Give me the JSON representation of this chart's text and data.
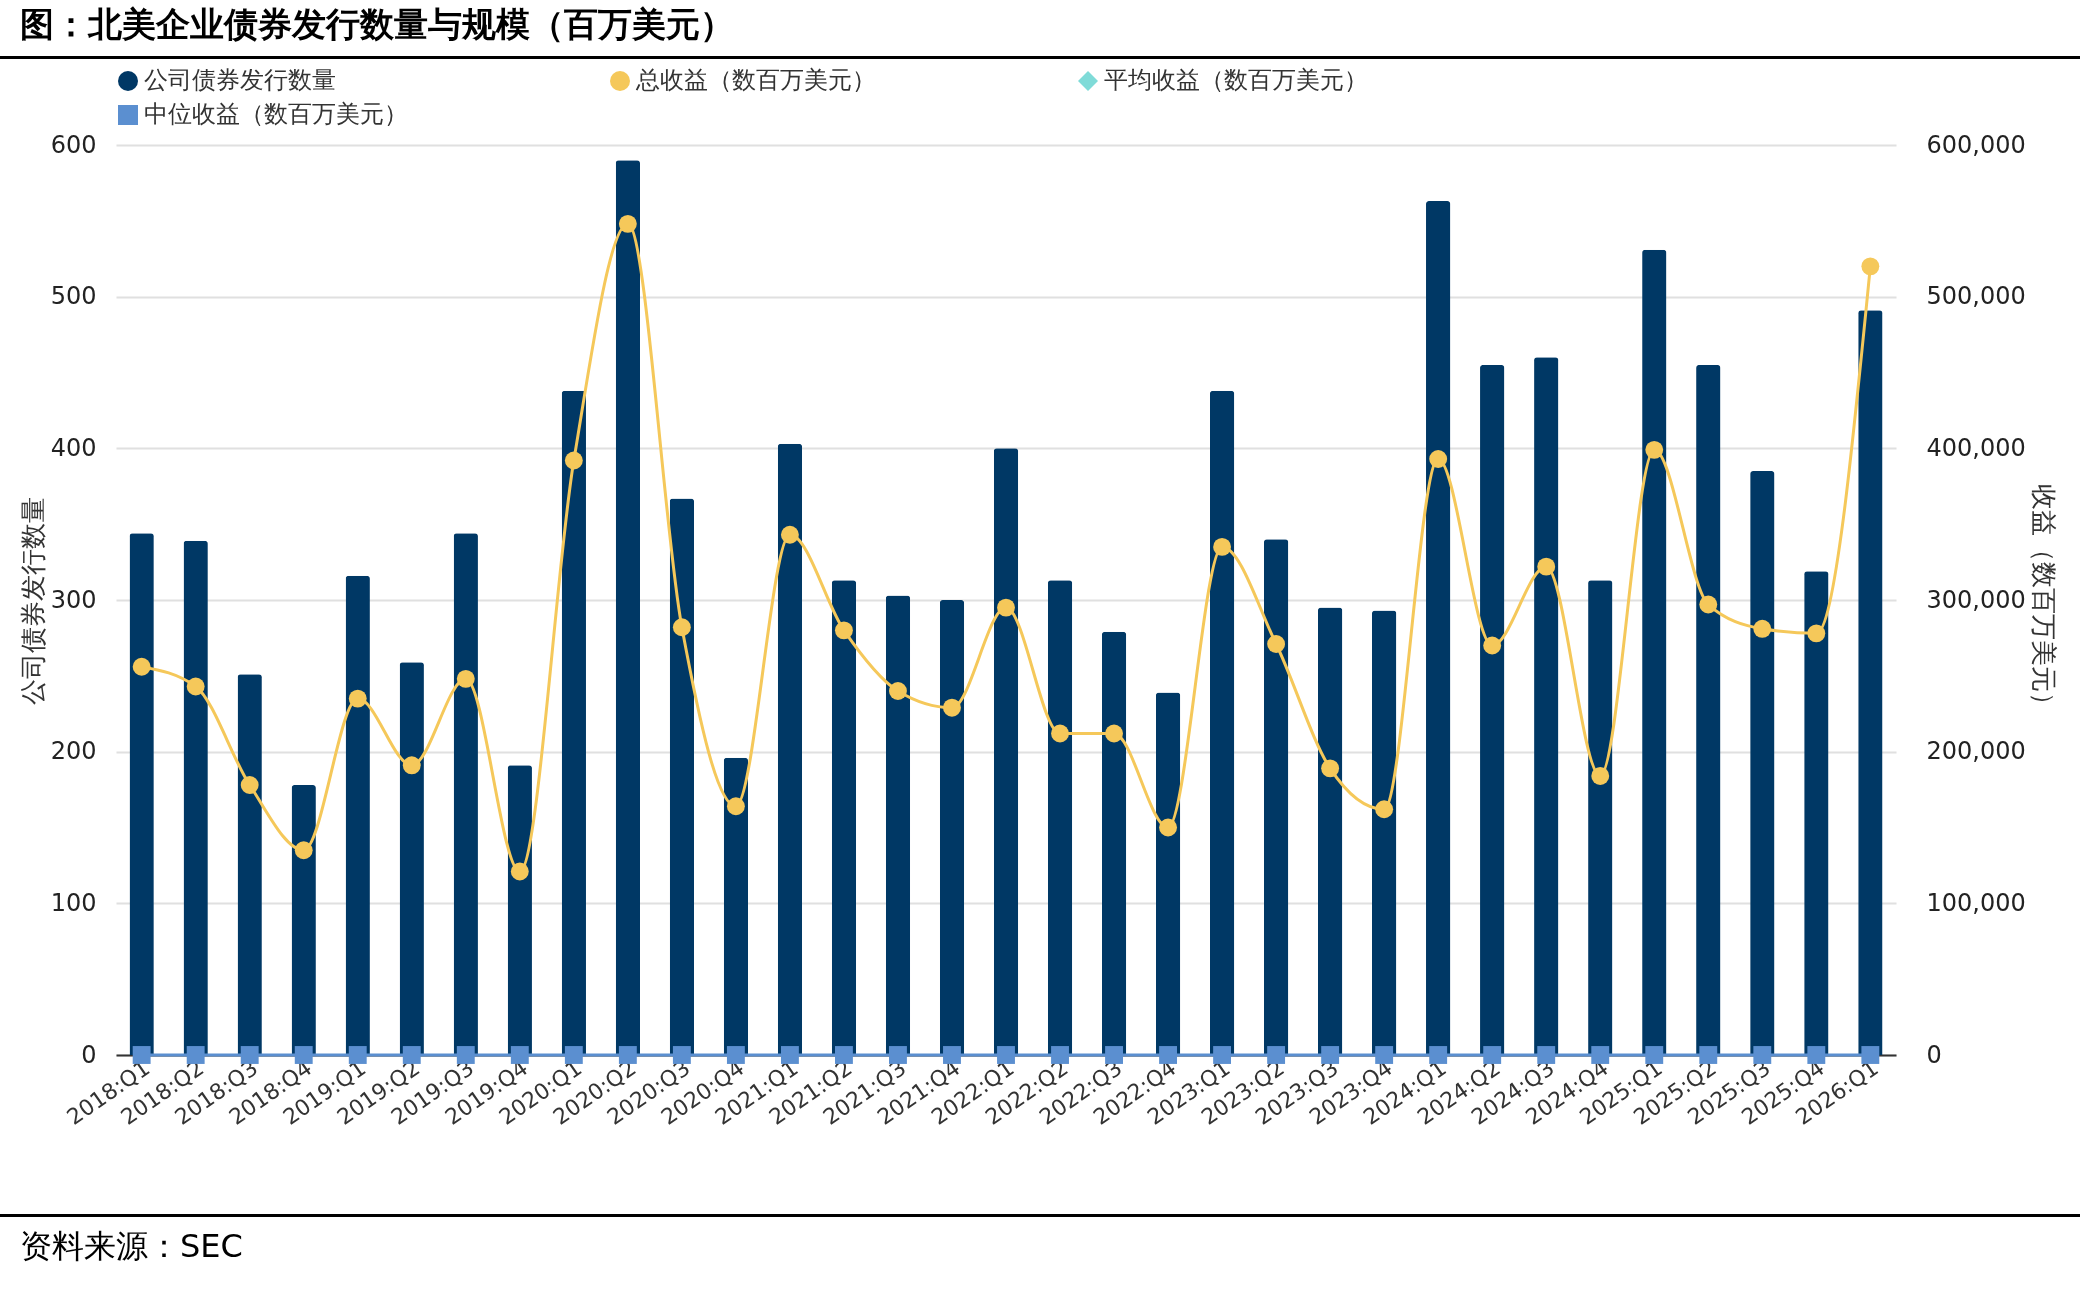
{
  "chart_data": {
    "type": "bar",
    "title": "图：北美企业债券发行数量与规模（百万美元）",
    "categories": [
      "2018:Q1",
      "2018:Q2",
      "2018:Q3",
      "2018:Q4",
      "2019:Q1",
      "2019:Q2",
      "2019:Q3",
      "2019:Q4",
      "2020:Q1",
      "2020:Q2",
      "2020:Q3",
      "2020:Q4",
      "2021:Q1",
      "2021:Q2",
      "2021:Q3",
      "2021:Q4",
      "2022:Q1",
      "2022:Q2",
      "2022:Q3",
      "2022:Q4",
      "2023:Q1",
      "2023:Q2",
      "2023:Q3",
      "2023:Q4",
      "2024:Q1",
      "2024:Q2",
      "2024:Q3",
      "2024:Q4",
      "2025:Q1",
      "2025:Q2",
      "2025:Q3",
      "2025:Q4",
      "2026:Q1"
    ],
    "series": [
      {
        "name": "公司债券发行数量",
        "color": "#003865",
        "values": [
          344,
          339,
          251,
          178,
          316,
          259,
          344,
          191,
          438,
          590,
          367,
          196,
          403,
          313,
          303,
          300,
          400,
          313,
          279,
          239,
          438,
          340,
          295,
          293,
          563,
          455,
          460,
          313,
          531,
          455,
          385,
          319,
          491
        ]
      },
      {
        "name": "总收益（数百万美元）",
        "type": "line",
        "axis": "y2",
        "marker": "circle",
        "color": "#f5c85a",
        "values": [
          256000,
          243000,
          178000,
          135000,
          235000,
          191000,
          248000,
          121000,
          392000,
          548000,
          282000,
          164000,
          343000,
          280000,
          240000,
          229000,
          295000,
          212000,
          212000,
          150000,
          335000,
          271000,
          189000,
          162000,
          393000,
          270000,
          322000,
          184000,
          399000,
          297000,
          281000,
          278000,
          520000
        ]
      },
      {
        "name": "平均收益（数百万美元）",
        "type": "line",
        "axis": "y2",
        "marker": "diamond",
        "color": "#7fdbd8",
        "values": [
          null,
          null,
          null,
          null,
          null,
          null,
          null,
          null,
          null,
          null,
          null,
          null,
          null,
          null,
          null,
          null,
          null,
          null,
          null,
          null,
          null,
          null,
          null,
          null,
          null,
          null,
          null,
          null,
          null,
          null,
          null,
          null,
          null
        ]
      },
      {
        "name": "中位收益（数百万美元）",
        "type": "line",
        "axis": "y2",
        "marker": "square",
        "color": "#5b8fd0",
        "values": [
          0,
          0,
          0,
          0,
          0,
          0,
          0,
          0,
          0,
          0,
          0,
          0,
          0,
          0,
          0,
          0,
          0,
          0,
          0,
          0,
          0,
          0,
          0,
          0,
          0,
          0,
          0,
          0,
          0,
          0,
          0,
          0,
          0
        ]
      }
    ],
    "ylabel": "公司债券发行数量",
    "y2label": "收益（数百万美元）",
    "ylim": [
      0,
      600
    ],
    "yticks": [
      0,
      100,
      200,
      300,
      400,
      500,
      600
    ],
    "y2lim": [
      0,
      600000
    ],
    "y2ticks": [
      0,
      {
        "value": 100000,
        "label": "100,000"
      },
      {
        "value": 200000,
        "label": "200,000"
      },
      {
        "value": 300000,
        "label": "300,000"
      },
      {
        "value": 400000,
        "label": "400,000"
      },
      {
        "value": 500000,
        "label": "500,000"
      },
      {
        "value": 600000,
        "label": "600,000"
      }
    ],
    "grid": "y",
    "legend": "top",
    "annotations": [
      "资料来源：SEC"
    ]
  }
}
